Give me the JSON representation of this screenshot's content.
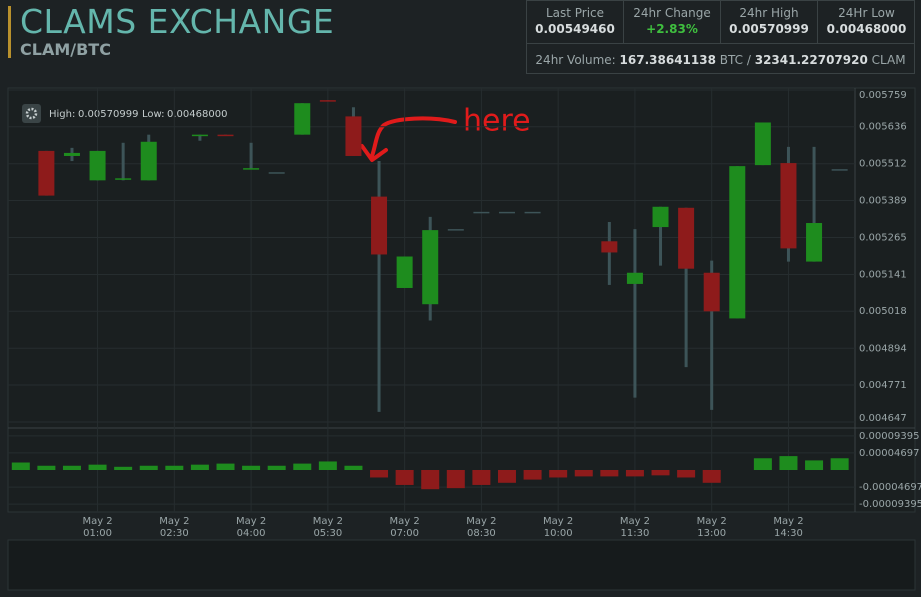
{
  "header": {
    "title": "CLAMS EXCHANGE",
    "pair": "CLAM/BTC"
  },
  "stats": [
    {
      "label": "Last Price",
      "value": "0.00549460"
    },
    {
      "label": "24hr Change",
      "value": "+2.83%"
    },
    {
      "label": "24hr High",
      "value": "0.00570999"
    },
    {
      "label": "24Hr Low",
      "value": "0.00468000"
    }
  ],
  "volume": {
    "label": "24hr Volume:",
    "btc": "167.38641138",
    "btc_unit": "BTC /",
    "clam": "32341.22707920",
    "clam_unit": "CLAM"
  },
  "chart_data": {
    "type": "candlestick",
    "range_high_label": "High:",
    "range_high": "0.00570999",
    "range_low_label": "Low:",
    "range_low": "0.00468000",
    "annotation": "here",
    "up_color": "#1e8c1e",
    "down_color": "#8e1b1b",
    "flat_color": "#3d5458",
    "xlim": [
      -0.75,
      15.8
    ],
    "xticks": [
      {
        "value": 1,
        "label": "May 2\n01:00"
      },
      {
        "value": 2.5,
        "label": "May 2\n02:30"
      },
      {
        "value": 4,
        "label": "May 2\n04:00"
      },
      {
        "value": 5.5,
        "label": "May 2\n05:30"
      },
      {
        "value": 7,
        "label": "May 2\n07:00"
      },
      {
        "value": 8.5,
        "label": "May 2\n08:30"
      },
      {
        "value": 10,
        "label": "May 2\n10:00"
      },
      {
        "value": 11.5,
        "label": "May 2\n11:30"
      },
      {
        "value": 13,
        "label": "May 2\n13:00"
      },
      {
        "value": 14.5,
        "label": "May 2\n14:30"
      }
    ],
    "ylim": [
      0.004647,
      0.005759
    ],
    "yticks": [
      0.005759,
      0.005636,
      0.005512,
      0.005389,
      0.005265,
      0.005141,
      0.005018,
      0.004894,
      0.004771,
      0.004647
    ],
    "grid": true,
    "x": [
      0,
      0.5,
      1,
      1.5,
      2,
      3,
      3.5,
      4,
      4.5,
      5,
      5.5,
      6,
      6.5,
      7,
      7.5,
      8,
      8.5,
      9,
      9.5,
      11,
      11.5,
      12,
      12.5,
      13,
      13.5,
      14,
      14.5,
      15,
      15.5
    ],
    "open": [
      0.005555,
      0.005538,
      0.0054564,
      0.0054598,
      0.0054564,
      0.005606,
      0.0056094,
      0.0054938,
      0.0054836,
      0.0056094,
      0.005725,
      0.0056706,
      0.0054019,
      0.0050959,
      0.0050415,
      0.0052931,
      0.0053509,
      0.0053509,
      0.0053509,
      0.0052523,
      0.0051095,
      0.0052999,
      0.0053645,
      0.0051469,
      0.0049939,
      0.0055074,
      0.0055142,
      0.0051843,
      0.0054938
    ],
    "high": [
      0.005555,
      0.0055652,
      0.005555,
      0.0055822,
      0.0056094,
      0.0056094,
      0.0056094,
      0.0055822,
      0.0054836,
      0.0057148,
      0.005725,
      0.0057012,
      0.005521,
      0.0052013,
      0.0053339,
      0.0052931,
      0.0053509,
      0.0053509,
      0.0053509,
      0.0053169,
      0.0052931,
      0.0053679,
      0.0053645,
      0.0051877,
      0.005504,
      0.0056502,
      0.0055686,
      0.0055686,
      0.0054938
    ],
    "low": [
      0.0054053,
      0.005521,
      0.0054564,
      0.0054564,
      0.0054564,
      0.005589,
      0.005606,
      0.0054938,
      0.0054836,
      0.0056094,
      0.0057216,
      0.005538,
      0.004681,
      0.0050959,
      0.0049871,
      0.0052931,
      0.0053509,
      0.0053509,
      0.0053509,
      0.0051061,
      0.0047286,
      0.0051707,
      0.0048307,
      0.0046878,
      0.0049939,
      0.0055074,
      0.0051843,
      0.0051843,
      0.0054938
    ],
    "close": [
      0.0054053,
      0.0055482,
      0.005555,
      0.0054632,
      0.0055856,
      0.0056094,
      0.005606,
      0.0054972,
      0.0054836,
      0.0057148,
      0.0057216,
      0.005538,
      0.0052081,
      0.0052013,
      0.0052897,
      0.0052931,
      0.0053509,
      0.0053509,
      0.0053509,
      0.0052149,
      0.0051469,
      0.0053679,
      0.0051605,
      0.0050177,
      0.005504,
      0.0056502,
      0.0052285,
      0.0053135,
      0.0054938
    ],
    "macd": {
      "ylim": [
        -0.00011,
        0.00011
      ],
      "yticks": [
        9.395e-05,
        4.697e-05,
        -4.697e-05,
        -9.395e-05
      ],
      "x": [
        -0.5,
        0,
        0.5,
        1,
        1.5,
        2,
        2.5,
        3,
        3.5,
        4,
        4.5,
        5,
        5.5,
        6,
        6.5,
        7,
        7.5,
        8,
        8.5,
        9,
        9.5,
        10,
        10.5,
        11,
        11.5,
        12,
        12.5,
        13,
        14,
        14.5,
        15,
        15.5
      ],
      "values": [
        2.06e-05,
        1.17e-05,
        1.17e-05,
        1.47e-05,
        8.8e-06,
        1.17e-05,
        1.17e-05,
        1.47e-05,
        1.76e-05,
        1.17e-05,
        1.17e-05,
        1.76e-05,
        2.35e-05,
        1.17e-05,
        -2.06e-05,
        -4.11e-05,
        -5.28e-05,
        -4.99e-05,
        -4.11e-05,
        -3.52e-05,
        -2.64e-05,
        -2.06e-05,
        -1.76e-05,
        -1.76e-05,
        -1.76e-05,
        -1.47e-05,
        -2.06e-05,
        -3.52e-05,
        3.23e-05,
        3.82e-05,
        2.64e-05,
        3.23e-05
      ]
    }
  }
}
